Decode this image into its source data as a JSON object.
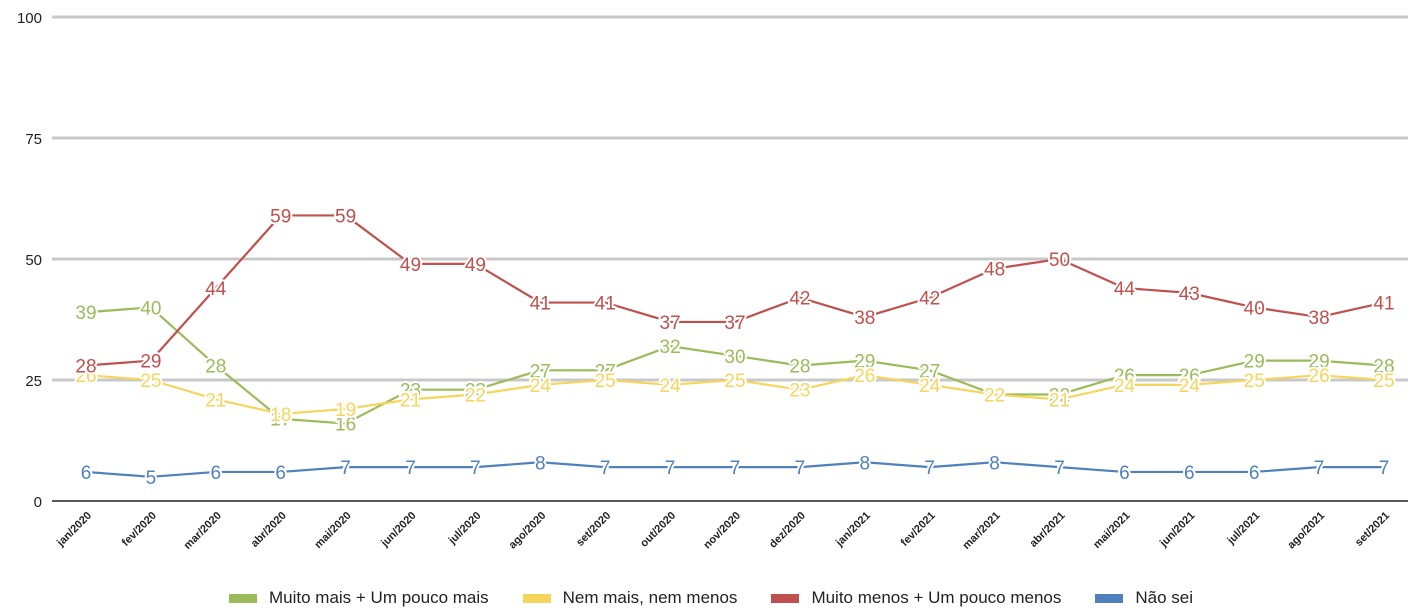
{
  "chart_data": {
    "type": "line",
    "ylim": [
      0,
      100
    ],
    "y_ticks": [
      "0",
      "25",
      "50",
      "75",
      "100"
    ],
    "grid": true,
    "legend_position": "bottom",
    "categories": [
      "jan/2020",
      "fev/2020",
      "mar/2020",
      "abr/2020",
      "mai/2020",
      "jun/2020",
      "jul/2020",
      "ago/2020",
      "set/2020",
      "out/2020",
      "nov/2020",
      "dez/2020",
      "jan/2021",
      "fev/2021",
      "mar/2021",
      "abr/2021",
      "mai/2021",
      "jun/2021",
      "jul/2021",
      "ago/2021",
      "set/2021"
    ],
    "series": [
      {
        "name": "Muito mais + Um pouco mais",
        "color": "#9bbb59",
        "values": [
          39,
          40,
          28,
          17,
          16,
          23,
          23,
          27,
          27,
          32,
          30,
          28,
          29,
          27,
          22,
          22,
          26,
          26,
          29,
          29,
          28
        ]
      },
      {
        "name": "Nem mais, nem menos",
        "color": "#f6d55c",
        "values": [
          26,
          25,
          21,
          18,
          19,
          21,
          22,
          24,
          25,
          24,
          25,
          23,
          26,
          24,
          22,
          21,
          24,
          24,
          25,
          26,
          25
        ]
      },
      {
        "name": "Muito menos + Um pouco menos",
        "color": "#c0504d",
        "values": [
          28,
          29,
          44,
          59,
          59,
          49,
          49,
          41,
          41,
          37,
          37,
          42,
          38,
          42,
          48,
          50,
          44,
          43,
          40,
          38,
          41
        ]
      },
      {
        "name": "Não sei",
        "color": "#4f81bd",
        "values": [
          6,
          5,
          6,
          6,
          7,
          7,
          7,
          8,
          7,
          7,
          7,
          7,
          8,
          7,
          8,
          7,
          6,
          6,
          6,
          7,
          7
        ]
      }
    ]
  }
}
